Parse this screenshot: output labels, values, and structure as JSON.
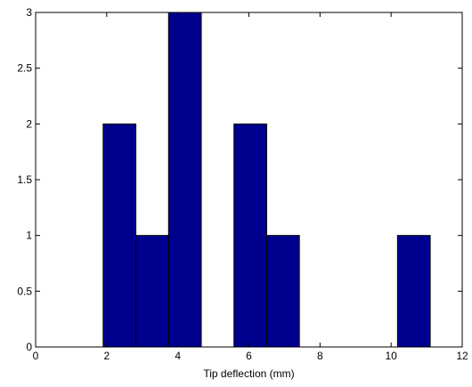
{
  "chart_data": {
    "type": "bar",
    "title": "",
    "xlabel": "Tip deflection (mm)",
    "ylabel": "",
    "xlim": [
      0,
      12
    ],
    "ylim": [
      0,
      3
    ],
    "x_ticks": [
      0,
      2,
      4,
      6,
      8,
      10,
      12
    ],
    "y_ticks": [
      0,
      0.5,
      1,
      1.5,
      2,
      2.5,
      3
    ],
    "x_tick_labels": [
      "0",
      "2",
      "4",
      "6",
      "8",
      "10",
      "12"
    ],
    "y_tick_labels": [
      "0",
      "0.5",
      "1",
      "1.5",
      "2",
      "2.5",
      "3"
    ],
    "bins": [
      {
        "x0": 1.9,
        "x1": 2.82,
        "count": 2
      },
      {
        "x0": 2.82,
        "x1": 3.74,
        "count": 1
      },
      {
        "x0": 3.74,
        "x1": 4.66,
        "count": 3
      },
      {
        "x0": 4.66,
        "x1": 5.58,
        "count": 0
      },
      {
        "x0": 5.58,
        "x1": 6.5,
        "count": 2
      },
      {
        "x0": 6.5,
        "x1": 7.42,
        "count": 1
      },
      {
        "x0": 7.42,
        "x1": 8.34,
        "count": 0
      },
      {
        "x0": 8.34,
        "x1": 9.26,
        "count": 0
      },
      {
        "x0": 9.26,
        "x1": 10.18,
        "count": 0
      },
      {
        "x0": 10.18,
        "x1": 11.1,
        "count": 1
      }
    ],
    "bar_color": "#00008f",
    "bar_edge_color": "#000000",
    "grid": false,
    "legend": "none"
  }
}
